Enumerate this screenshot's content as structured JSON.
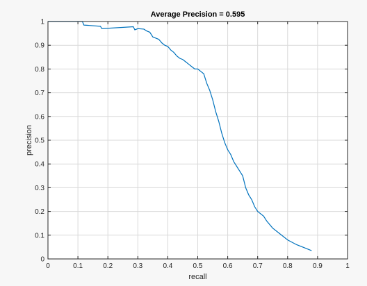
{
  "chart_data": {
    "type": "line",
    "title": "Average Precision = 0.595",
    "xlabel": "recall",
    "ylabel": "precision",
    "xlim": [
      0,
      1
    ],
    "ylim": [
      0,
      1
    ],
    "grid": true,
    "xticks": [
      "0",
      "0.1",
      "0.2",
      "0.3",
      "0.4",
      "0.5",
      "0.6",
      "0.7",
      "0.8",
      "0.9",
      "1"
    ],
    "yticks": [
      "0",
      "0.1",
      "0.2",
      "0.3",
      "0.4",
      "0.5",
      "0.6",
      "0.7",
      "0.8",
      "0.9",
      "1"
    ],
    "series": [
      {
        "color": "#0072bd",
        "points": [
          [
            0.0,
            1.0
          ],
          [
            0.115,
            1.0
          ],
          [
            0.12,
            0.985
          ],
          [
            0.175,
            0.98
          ],
          [
            0.18,
            0.97
          ],
          [
            0.285,
            0.978
          ],
          [
            0.29,
            0.965
          ],
          [
            0.3,
            0.97
          ],
          [
            0.32,
            0.968
          ],
          [
            0.33,
            0.96
          ],
          [
            0.34,
            0.955
          ],
          [
            0.35,
            0.935
          ],
          [
            0.36,
            0.93
          ],
          [
            0.37,
            0.925
          ],
          [
            0.38,
            0.91
          ],
          [
            0.39,
            0.9
          ],
          [
            0.4,
            0.895
          ],
          [
            0.41,
            0.88
          ],
          [
            0.42,
            0.87
          ],
          [
            0.43,
            0.855
          ],
          [
            0.44,
            0.845
          ],
          [
            0.45,
            0.84
          ],
          [
            0.46,
            0.83
          ],
          [
            0.47,
            0.82
          ],
          [
            0.48,
            0.81
          ],
          [
            0.49,
            0.8
          ],
          [
            0.5,
            0.8
          ],
          [
            0.51,
            0.79
          ],
          [
            0.52,
            0.78
          ],
          [
            0.53,
            0.74
          ],
          [
            0.54,
            0.71
          ],
          [
            0.55,
            0.67
          ],
          [
            0.56,
            0.62
          ],
          [
            0.57,
            0.58
          ],
          [
            0.58,
            0.53
          ],
          [
            0.59,
            0.49
          ],
          [
            0.6,
            0.46
          ],
          [
            0.61,
            0.44
          ],
          [
            0.62,
            0.41
          ],
          [
            0.63,
            0.39
          ],
          [
            0.64,
            0.37
          ],
          [
            0.65,
            0.35
          ],
          [
            0.66,
            0.3
          ],
          [
            0.67,
            0.27
          ],
          [
            0.68,
            0.25
          ],
          [
            0.69,
            0.22
          ],
          [
            0.7,
            0.2
          ],
          [
            0.72,
            0.18
          ],
          [
            0.73,
            0.16
          ],
          [
            0.75,
            0.13
          ],
          [
            0.77,
            0.11
          ],
          [
            0.8,
            0.08
          ],
          [
            0.83,
            0.06
          ],
          [
            0.86,
            0.045
          ],
          [
            0.88,
            0.035
          ]
        ]
      }
    ]
  }
}
